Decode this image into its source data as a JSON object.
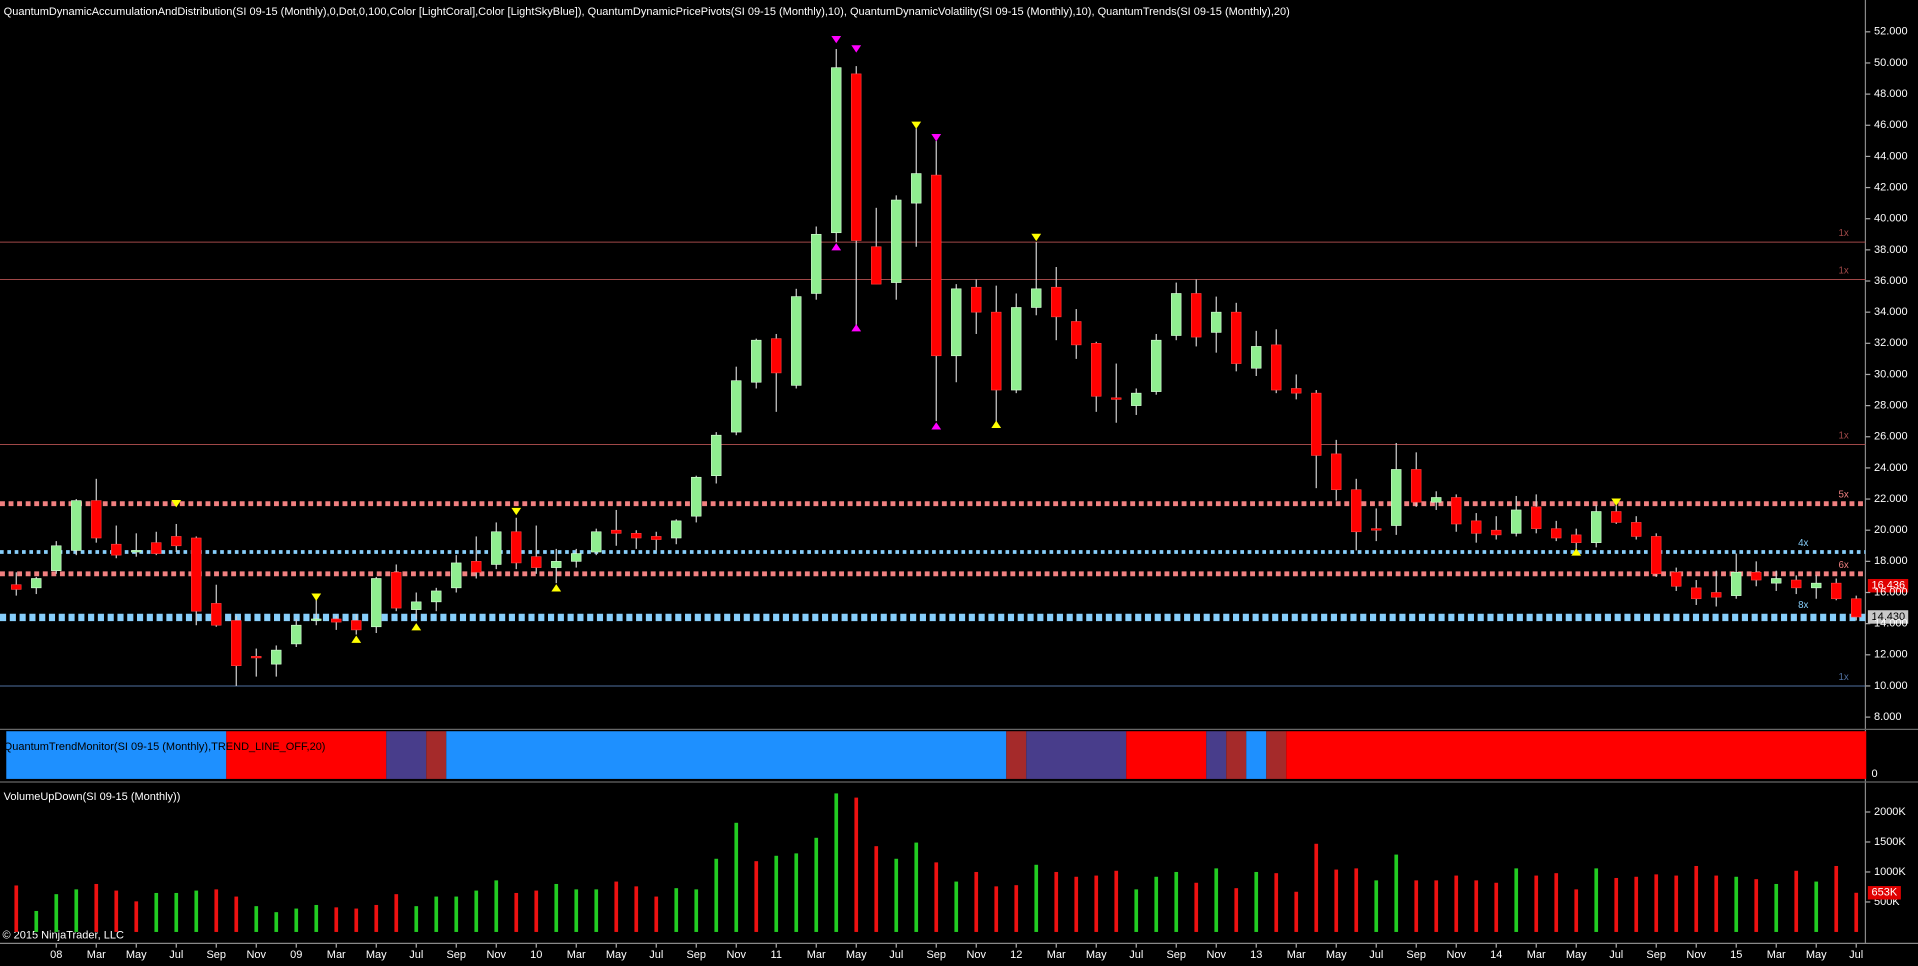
{
  "chart_data": {
    "type": "candlestick",
    "title": "QuantumDynamicAccumulationAndDistribution(SI 09-15 (Monthly),0,Dot,0,100,Color [LightCoral],Color [LightSkyBlue]), QuantumDynamicPricePivots(SI 09-15 (Monthly),10), QuantumDynamicVolatility(SI 09-15 (Monthly),10), QuantumTrends(SI 09-15 (Monthly),20)",
    "trend_title": "QuantumTrendMonitor(SI 09-15 (Monthly),TREND_LINE_OFF,20)",
    "trend_zero": "0",
    "volume_title": "VolumeUpDown(SI 09-15 (Monthly))",
    "copyright": "© 2015 NinjaTrader, LLC",
    "categories": [
      null,
      null,
      "08",
      null,
      "Mar",
      null,
      "May",
      null,
      "Jul",
      null,
      "Sep",
      null,
      "Nov",
      null,
      "09",
      null,
      "Mar",
      null,
      "May",
      null,
      "Jul",
      null,
      "Sep",
      null,
      "Nov",
      null,
      "10",
      null,
      "Mar",
      null,
      "May",
      null,
      "Jul",
      null,
      "Sep",
      null,
      "Nov",
      null,
      "11",
      null,
      "Mar",
      null,
      "May",
      null,
      "Jul",
      null,
      "Sep",
      null,
      "Nov",
      null,
      "12",
      null,
      "Mar",
      null,
      "May",
      null,
      "Jul",
      null,
      "Sep",
      null,
      "Nov",
      null,
      "13",
      null,
      "Mar",
      null,
      "May",
      null,
      "Jul",
      null,
      "Sep",
      null,
      "Nov",
      null,
      "14",
      null,
      "Mar",
      null,
      "May",
      null,
      "Jul",
      null,
      "Sep",
      null,
      "Nov",
      null,
      "15",
      null,
      "Mar",
      null,
      "May",
      null,
      "Jul"
    ],
    "candles": [
      [
        16.5,
        17.3,
        15.8,
        16.2
      ],
      [
        16.3,
        17.0,
        15.9,
        16.9
      ],
      [
        17.4,
        19.3,
        17.2,
        19.0
      ],
      [
        18.7,
        22.0,
        18.4,
        21.9
      ],
      [
        21.9,
        23.3,
        19.2,
        19.5
      ],
      [
        19.1,
        20.3,
        18.2,
        18.4
      ],
      [
        18.6,
        19.8,
        18.3,
        18.7
      ],
      [
        19.2,
        19.9,
        18.4,
        18.5
      ],
      [
        19.6,
        20.4,
        18.6,
        19.0
      ],
      [
        19.5,
        19.6,
        13.9,
        14.8
      ],
      [
        15.3,
        16.5,
        13.8,
        13.9
      ],
      [
        14.2,
        14.5,
        10.0,
        11.3
      ],
      [
        11.9,
        12.4,
        10.6,
        11.8
      ],
      [
        11.4,
        12.6,
        10.6,
        12.3
      ],
      [
        12.7,
        14.3,
        12.5,
        13.9
      ],
      [
        14.2,
        15.6,
        13.9,
        14.3
      ],
      [
        14.3,
        14.5,
        13.6,
        14.1
      ],
      [
        14.2,
        14.6,
        13.3,
        13.6
      ],
      [
        13.8,
        17.0,
        13.4,
        16.9
      ],
      [
        17.3,
        17.8,
        14.8,
        15.0
      ],
      [
        14.9,
        16.0,
        14.3,
        15.4
      ],
      [
        15.4,
        16.3,
        14.8,
        16.1
      ],
      [
        16.3,
        18.4,
        16.0,
        17.9
      ],
      [
        18.0,
        19.6,
        16.9,
        17.3
      ],
      [
        17.8,
        20.5,
        17.5,
        19.9
      ],
      [
        19.9,
        20.8,
        17.5,
        17.9
      ],
      [
        18.3,
        20.3,
        17.2,
        17.6
      ],
      [
        17.6,
        18.8,
        16.6,
        18.0
      ],
      [
        18.0,
        18.8,
        17.6,
        18.5
      ],
      [
        18.6,
        20.1,
        18.4,
        19.9
      ],
      [
        20.0,
        21.3,
        19.0,
        19.8
      ],
      [
        19.8,
        20.0,
        18.8,
        19.5
      ],
      [
        19.6,
        19.9,
        18.7,
        19.4
      ],
      [
        19.5,
        20.7,
        19.1,
        20.6
      ],
      [
        20.9,
        23.5,
        20.5,
        23.4
      ],
      [
        23.5,
        26.3,
        23.0,
        26.1
      ],
      [
        26.3,
        30.5,
        26.1,
        29.6
      ],
      [
        29.5,
        32.3,
        29.1,
        32.2
      ],
      [
        32.3,
        32.6,
        27.6,
        30.1
      ],
      [
        29.3,
        35.5,
        29.1,
        35.0
      ],
      [
        35.2,
        39.5,
        34.8,
        39.0
      ],
      [
        39.1,
        50.9,
        38.5,
        49.7
      ],
      [
        49.3,
        49.8,
        33.1,
        38.6
      ],
      [
        38.2,
        40.7,
        35.8,
        35.8
      ],
      [
        35.9,
        41.5,
        34.8,
        41.2
      ],
      [
        41.0,
        45.8,
        38.2,
        42.9
      ],
      [
        42.8,
        45.0,
        27.0,
        31.2
      ],
      [
        31.2,
        35.8,
        29.5,
        35.5
      ],
      [
        35.6,
        36.1,
        32.6,
        34.0
      ],
      [
        34.0,
        35.7,
        26.8,
        29.0
      ],
      [
        29.0,
        35.2,
        28.8,
        34.3
      ],
      [
        34.3,
        38.5,
        33.8,
        35.5
      ],
      [
        35.6,
        36.9,
        32.2,
        33.7
      ],
      [
        33.4,
        34.2,
        31.0,
        31.9
      ],
      [
        32.0,
        32.1,
        27.6,
        28.6
      ],
      [
        28.5,
        30.7,
        26.9,
        28.4
      ],
      [
        28.0,
        29.1,
        27.4,
        28.8
      ],
      [
        28.9,
        32.6,
        28.7,
        32.2
      ],
      [
        32.5,
        35.9,
        32.2,
        35.2
      ],
      [
        35.2,
        36.1,
        31.8,
        32.4
      ],
      [
        32.7,
        35.0,
        31.4,
        34.0
      ],
      [
        34.0,
        34.6,
        30.2,
        30.7
      ],
      [
        30.4,
        32.8,
        29.9,
        31.8
      ],
      [
        31.9,
        32.9,
        28.8,
        29.0
      ],
      [
        29.1,
        30.0,
        28.4,
        28.8
      ],
      [
        28.8,
        29.0,
        22.7,
        24.8
      ],
      [
        24.9,
        25.8,
        21.9,
        22.6
      ],
      [
        22.6,
        23.3,
        18.7,
        19.9
      ],
      [
        20.1,
        21.4,
        19.3,
        20.0
      ],
      [
        20.3,
        25.6,
        19.7,
        23.9
      ],
      [
        23.9,
        25.0,
        21.5,
        21.8
      ],
      [
        21.8,
        22.5,
        21.3,
        22.1
      ],
      [
        22.1,
        22.3,
        19.9,
        20.4
      ],
      [
        20.6,
        21.1,
        19.2,
        19.8
      ],
      [
        20.0,
        20.9,
        19.4,
        19.7
      ],
      [
        19.8,
        22.2,
        19.6,
        21.3
      ],
      [
        21.5,
        22.3,
        19.8,
        20.1
      ],
      [
        20.1,
        20.6,
        19.3,
        19.5
      ],
      [
        19.7,
        20.1,
        18.8,
        19.2
      ],
      [
        19.2,
        21.6,
        18.9,
        21.2
      ],
      [
        21.2,
        21.6,
        20.4,
        20.5
      ],
      [
        20.5,
        20.9,
        19.4,
        19.6
      ],
      [
        19.6,
        19.8,
        17.0,
        17.2
      ],
      [
        17.3,
        17.6,
        16.1,
        16.4
      ],
      [
        16.3,
        16.8,
        15.2,
        15.6
      ],
      [
        16.0,
        17.4,
        15.1,
        15.7
      ],
      [
        15.8,
        18.5,
        15.6,
        17.3
      ],
      [
        17.3,
        18.0,
        16.4,
        16.8
      ],
      [
        16.6,
        17.4,
        16.1,
        16.9
      ],
      [
        16.8,
        17.1,
        15.9,
        16.3
      ],
      [
        16.3,
        17.1,
        15.6,
        16.6
      ],
      [
        16.6,
        16.9,
        15.5,
        15.6
      ],
      [
        15.6,
        15.8,
        14.2,
        14.43
      ]
    ],
    "candle_colors": {
      "up": "#90ee90",
      "down": "#ff0000"
    },
    "ylim": [
      7.25,
      52.63
    ],
    "yticks": [
      {
        "value": 8,
        "label": "8.000"
      },
      {
        "value": 10,
        "label": "10.000"
      },
      {
        "value": 12,
        "label": "12.000"
      },
      {
        "value": 14,
        "label": "14.000"
      },
      {
        "value": 16,
        "label": "16.000"
      },
      {
        "value": 18,
        "label": "18.000"
      },
      {
        "value": 20,
        "label": "20.000"
      },
      {
        "value": 22,
        "label": "22.000"
      },
      {
        "value": 24,
        "label": "24.000"
      },
      {
        "value": 26,
        "label": "26.000"
      },
      {
        "value": 28,
        "label": "28.000"
      },
      {
        "value": 30,
        "label": "30.000"
      },
      {
        "value": 32,
        "label": "32.000"
      },
      {
        "value": 34,
        "label": "34.000"
      },
      {
        "value": 36,
        "label": "36.000"
      },
      {
        "value": 38,
        "label": "38.000"
      },
      {
        "value": 40,
        "label": "40.000"
      },
      {
        "value": 42,
        "label": "42.000"
      },
      {
        "value": 44,
        "label": "44.000"
      },
      {
        "value": 46,
        "label": "46.000"
      },
      {
        "value": 48,
        "label": "48.000"
      },
      {
        "value": 50,
        "label": "50.000"
      },
      {
        "value": 52,
        "label": "52.000"
      }
    ],
    "levels": [
      {
        "value": 38.5,
        "label": "1x",
        "color": "#a04848",
        "style": "thin"
      },
      {
        "value": 36.1,
        "label": "1x",
        "color": "#a04848",
        "style": "thin"
      },
      {
        "value": 25.5,
        "label": "1x",
        "color": "#a04848",
        "style": "thin"
      },
      {
        "value": 21.7,
        "label": "5x",
        "color": "#f08080",
        "style": "dots-thick"
      },
      {
        "value": 18.6,
        "label": "4x",
        "color": "#87cefa",
        "style": "dots"
      },
      {
        "value": 17.2,
        "label": "6x",
        "color": "#f08080",
        "style": "dots-thick"
      },
      {
        "value": 14.4,
        "label": "8x",
        "color": "#87cefa",
        "style": "dots-heavy"
      },
      {
        "value": 10.0,
        "label": "1x",
        "color": "#5070a0",
        "style": "thin"
      }
    ],
    "price_labels": [
      {
        "value": 16.436,
        "label": "16.436",
        "color": "#e00000"
      },
      {
        "value": 14.43,
        "label": "14.430",
        "color": "#c8c8c8"
      }
    ],
    "pivots": [
      {
        "category": 41,
        "value": 51.5,
        "dir": "down",
        "color": "#ff00ff"
      },
      {
        "category": 41,
        "value": 38.2,
        "dir": "up",
        "color": "#ff00ff"
      },
      {
        "category": 42,
        "value": 50.9,
        "dir": "down",
        "color": "#ff00ff"
      },
      {
        "category": 42,
        "value": 33.0,
        "dir": "up",
        "color": "#ff00ff"
      },
      {
        "category": 45,
        "value": 46.0,
        "dir": "down",
        "color": "#ffff00"
      },
      {
        "category": 46,
        "value": 45.2,
        "dir": "down",
        "color": "#ff00ff"
      },
      {
        "category": 46,
        "value": 26.7,
        "dir": "up",
        "color": "#ff00ff"
      },
      {
        "category": 49,
        "value": 26.8,
        "dir": "up",
        "color": "#ffff00"
      },
      {
        "category": 51,
        "value": 38.8,
        "dir": "down",
        "color": "#ffff00"
      },
      {
        "category": 8,
        "value": 21.7,
        "dir": "down",
        "color": "#ffff00"
      },
      {
        "category": 25,
        "value": 21.2,
        "dir": "down",
        "color": "#ffff00"
      },
      {
        "category": 27,
        "value": 16.3,
        "dir": "up",
        "color": "#ffff00"
      },
      {
        "category": 15,
        "value": 15.7,
        "dir": "down",
        "color": "#ffff00"
      },
      {
        "category": 17,
        "value": 13.0,
        "dir": "up",
        "color": "#ffff00"
      },
      {
        "category": 20,
        "value": 13.8,
        "dir": "up",
        "color": "#ffff00"
      },
      {
        "category": 80,
        "value": 21.8,
        "dir": "down",
        "color": "#ffff00"
      },
      {
        "category": 78,
        "value": 18.6,
        "dir": "up",
        "color": "#ffff00"
      }
    ],
    "trend_segments": [
      {
        "color": "#1e90ff",
        "months": 11
      },
      {
        "color": "#ff0000",
        "months": 8
      },
      {
        "color": "#483d8b",
        "months": 2
      },
      {
        "color": "#a52a2a",
        "months": 1
      },
      {
        "color": "#1e90ff",
        "months": 28
      },
      {
        "color": "#a52a2a",
        "months": 1
      },
      {
        "color": "#483d8b",
        "months": 5
      },
      {
        "color": "#ff0000",
        "months": 4
      },
      {
        "color": "#483d8b",
        "months": 1
      },
      {
        "color": "#a52a2a",
        "months": 1
      },
      {
        "color": "#1e90ff",
        "months": 1
      },
      {
        "color": "#a52a2a",
        "months": 1
      },
      {
        "color": "#ff0000",
        "months": 29
      }
    ],
    "volume": [
      775000,
      350000,
      630000,
      710000,
      800000,
      690000,
      510000,
      650000,
      650000,
      690000,
      710000,
      590000,
      430000,
      330000,
      390000,
      450000,
      410000,
      390000,
      450000,
      630000,
      430000,
      590000,
      590000,
      690000,
      860000,
      650000,
      690000,
      800000,
      710000,
      710000,
      840000,
      760000,
      590000,
      730000,
      710000,
      1220000,
      1820000,
      1180000,
      1270000,
      1310000,
      1570000,
      2310000,
      2240000,
      1430000,
      1220000,
      1490000,
      1160000,
      840000,
      1000000,
      760000,
      780000,
      1120000,
      1000000,
      920000,
      940000,
      1020000,
      710000,
      920000,
      1000000,
      820000,
      1060000,
      730000,
      1000000,
      980000,
      670000,
      1470000,
      1040000,
      1060000,
      860000,
      1290000,
      860000,
      860000,
      940000,
      860000,
      820000,
      1060000,
      940000,
      980000,
      710000,
      1060000,
      900000,
      920000,
      960000,
      940000,
      1100000,
      940000,
      920000,
      880000,
      800000,
      1020000,
      840000,
      1100000,
      653000
    ],
    "volume_direction": [
      "d",
      "u",
      "u",
      "u",
      "d",
      "d",
      "d",
      "u",
      "u",
      "u",
      "d",
      "d",
      "u",
      "u",
      "u",
      "u",
      "d",
      "d",
      "d",
      "d",
      "u",
      "u",
      "u",
      "u",
      "u",
      "d",
      "d",
      "u",
      "u",
      "u",
      "d",
      "d",
      "d",
      "u",
      "u",
      "u",
      "u",
      "d",
      "u",
      "u",
      "u",
      "u",
      "d",
      "d",
      "u",
      "u",
      "d",
      "u",
      "d",
      "d",
      "d",
      "u",
      "d",
      "d",
      "d",
      "d",
      "u",
      "u",
      "u",
      "d",
      "u",
      "d",
      "u",
      "d",
      "d",
      "d",
      "d",
      "d",
      "u",
      "u",
      "d",
      "d",
      "d",
      "d",
      "d",
      "u",
      "d",
      "d",
      "d",
      "u",
      "d",
      "d",
      "d",
      "d",
      "d",
      "d",
      "u",
      "d",
      "u",
      "d",
      "u",
      "d",
      "d"
    ],
    "volume_colors": {
      "u": "#22cc22",
      "d": "#ee1111"
    },
    "volume_last_label": "653K",
    "volume_last_color": "#e00000",
    "vlim": [
      -160000,
      2470000
    ],
    "vticks": [
      {
        "value": 500000,
        "label": "500K"
      },
      {
        "value": 1000000,
        "label": "1000K"
      },
      {
        "value": 1500000,
        "label": "1500K"
      },
      {
        "value": 2000000,
        "label": "2000K"
      }
    ]
  }
}
